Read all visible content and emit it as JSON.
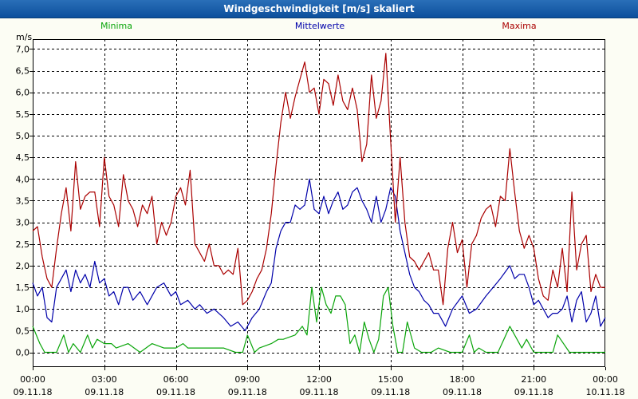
{
  "title": "Windgeschwindigkeit [m/s] skaliert",
  "chart_data": {
    "type": "line",
    "title": "Windgeschwindigkeit [m/s] skaliert",
    "ylabel": "m/s",
    "xlabel": "",
    "ylim": [
      0,
      7.0
    ],
    "xlim_hours": [
      0,
      24
    ],
    "grid": true,
    "y_ticks": [
      {
        "v": 0.0,
        "label": "0,0"
      },
      {
        "v": 0.5,
        "label": "0,5"
      },
      {
        "v": 1.0,
        "label": "1,0"
      },
      {
        "v": 1.5,
        "label": "1,5"
      },
      {
        "v": 2.0,
        "label": "2,0"
      },
      {
        "v": 2.5,
        "label": "2,5"
      },
      {
        "v": 3.0,
        "label": "3,0"
      },
      {
        "v": 3.5,
        "label": "3,5"
      },
      {
        "v": 4.0,
        "label": "4,0"
      },
      {
        "v": 4.5,
        "label": "4,5"
      },
      {
        "v": 5.0,
        "label": "5,0"
      },
      {
        "v": 5.5,
        "label": "5,5"
      },
      {
        "v": 6.0,
        "label": "6,0"
      },
      {
        "v": 6.5,
        "label": "6,5"
      },
      {
        "v": 7.0,
        "label": "7,0"
      }
    ],
    "x_ticks": [
      {
        "h": 0,
        "time": "00:00",
        "date": "09.11.18"
      },
      {
        "h": 3,
        "time": "03:00",
        "date": "09.11.18"
      },
      {
        "h": 6,
        "time": "06:00",
        "date": "09.11.18"
      },
      {
        "h": 9,
        "time": "09:00",
        "date": "09.11.18"
      },
      {
        "h": 12,
        "time": "12:00",
        "date": "09.11.18"
      },
      {
        "h": 15,
        "time": "15:00",
        "date": "09.11.18"
      },
      {
        "h": 18,
        "time": "18:00",
        "date": "09.11.18"
      },
      {
        "h": 21,
        "time": "21:00",
        "date": "09.11.18"
      },
      {
        "h": 24,
        "time": "00:00",
        "date": "10.11.18"
      }
    ],
    "series": [
      {
        "name": "Minima",
        "color": "#0aa50a",
        "x": [
          0,
          0.3,
          0.5,
          1,
          1.3,
          1.5,
          1.7,
          2,
          2.3,
          2.5,
          2.7,
          3,
          3.3,
          3.5,
          4,
          4.5,
          5,
          5.5,
          6,
          6.3,
          6.5,
          6.8,
          7,
          7.5,
          8,
          8.5,
          8.8,
          9,
          9.3,
          9.5,
          10,
          10.3,
          10.5,
          11,
          11.3,
          11.5,
          11.7,
          11.9,
          12.1,
          12.3,
          12.5,
          12.7,
          12.9,
          13.1,
          13.3,
          13.5,
          13.7,
          13.9,
          14.1,
          14.3,
          14.5,
          14.7,
          14.9,
          15.1,
          15.3,
          15.5,
          15.7,
          16,
          16.3,
          16.5,
          16.7,
          17,
          17.5,
          18,
          18.3,
          18.5,
          18.7,
          19,
          19.5,
          20,
          20.3,
          20.5,
          20.7,
          21,
          21.5,
          21.8,
          22,
          22.5,
          23,
          23.5,
          23.8,
          24
        ],
        "values": [
          0.6,
          0.2,
          0.0,
          0.0,
          0.4,
          0.0,
          0.2,
          0.0,
          0.4,
          0.1,
          0.3,
          0.2,
          0.2,
          0.1,
          0.2,
          0.0,
          0.2,
          0.1,
          0.1,
          0.2,
          0.1,
          0.1,
          0.1,
          0.1,
          0.1,
          0.0,
          0.0,
          0.4,
          0.0,
          0.1,
          0.2,
          0.3,
          0.3,
          0.4,
          0.6,
          0.4,
          1.5,
          0.7,
          1.5,
          1.1,
          0.9,
          1.3,
          1.3,
          1.1,
          0.2,
          0.4,
          0.0,
          0.7,
          0.3,
          0.0,
          0.3,
          1.3,
          1.5,
          0.6,
          0.0,
          0.0,
          0.7,
          0.1,
          0.0,
          0.0,
          0.0,
          0.1,
          0.0,
          0.0,
          0.4,
          0.0,
          0.1,
          0.0,
          0.0,
          0.6,
          0.3,
          0.1,
          0.3,
          0.0,
          0.0,
          0.0,
          0.4,
          0.0,
          0.0,
          0.0,
          0.0,
          0.0
        ]
      },
      {
        "name": "Mittelwerte",
        "color": "#0000aa",
        "x": [
          0,
          0.2,
          0.4,
          0.6,
          0.8,
          1,
          1.2,
          1.4,
          1.6,
          1.8,
          2,
          2.2,
          2.4,
          2.6,
          2.8,
          3,
          3.2,
          3.4,
          3.6,
          3.8,
          4,
          4.2,
          4.5,
          4.8,
          5,
          5.2,
          5.5,
          5.8,
          6,
          6.2,
          6.5,
          6.8,
          7,
          7.3,
          7.6,
          8,
          8.3,
          8.6,
          8.9,
          9.2,
          9.5,
          9.8,
          10,
          10.2,
          10.4,
          10.6,
          10.8,
          11,
          11.2,
          11.4,
          11.6,
          11.8,
          12,
          12.2,
          12.4,
          12.6,
          12.8,
          13,
          13.2,
          13.4,
          13.6,
          13.8,
          14,
          14.2,
          14.4,
          14.6,
          14.8,
          15,
          15.2,
          15.4,
          15.6,
          15.8,
          16,
          16.2,
          16.4,
          16.6,
          16.8,
          17,
          17.3,
          17.6,
          18,
          18.3,
          18.6,
          19,
          19.3,
          19.6,
          20,
          20.2,
          20.4,
          20.6,
          20.8,
          21,
          21.2,
          21.4,
          21.6,
          21.8,
          22,
          22.2,
          22.4,
          22.6,
          22.8,
          23,
          23.2,
          23.4,
          23.6,
          23.8,
          24
        ],
        "values": [
          1.6,
          1.3,
          1.5,
          0.8,
          0.7,
          1.5,
          1.7,
          1.9,
          1.4,
          1.9,
          1.6,
          1.8,
          1.5,
          2.1,
          1.6,
          1.7,
          1.3,
          1.4,
          1.1,
          1.5,
          1.5,
          1.2,
          1.4,
          1.1,
          1.3,
          1.5,
          1.6,
          1.3,
          1.4,
          1.1,
          1.2,
          1.0,
          1.1,
          0.9,
          1.0,
          0.8,
          0.6,
          0.7,
          0.5,
          0.8,
          1.0,
          1.4,
          1.6,
          2.4,
          2.8,
          3.0,
          3.0,
          3.4,
          3.3,
          3.4,
          4.0,
          3.3,
          3.2,
          3.6,
          3.2,
          3.5,
          3.7,
          3.3,
          3.4,
          3.7,
          3.8,
          3.5,
          3.3,
          3.0,
          3.6,
          3.0,
          3.3,
          3.8,
          3.6,
          2.8,
          2.3,
          1.8,
          1.5,
          1.4,
          1.2,
          1.1,
          0.9,
          0.9,
          0.6,
          1.0,
          1.3,
          0.9,
          1.0,
          1.3,
          1.5,
          1.7,
          2.0,
          1.7,
          1.8,
          1.8,
          1.5,
          1.1,
          1.2,
          1.0,
          0.8,
          0.9,
          0.9,
          1.0,
          1.3,
          0.7,
          1.2,
          1.4,
          0.7,
          0.9,
          1.3,
          0.6,
          0.8
        ]
      },
      {
        "name": "Maxima",
        "color": "#aa0000",
        "x": [
          0,
          0.2,
          0.4,
          0.6,
          0.8,
          1,
          1.2,
          1.4,
          1.6,
          1.8,
          2,
          2.2,
          2.4,
          2.6,
          2.8,
          3,
          3.2,
          3.4,
          3.6,
          3.8,
          4,
          4.2,
          4.4,
          4.6,
          4.8,
          5,
          5.2,
          5.4,
          5.6,
          5.8,
          6,
          6.2,
          6.4,
          6.6,
          6.8,
          7,
          7.2,
          7.4,
          7.6,
          7.8,
          8,
          8.2,
          8.4,
          8.6,
          8.8,
          9,
          9.2,
          9.4,
          9.6,
          9.8,
          10,
          10.2,
          10.4,
          10.6,
          10.8,
          11,
          11.2,
          11.4,
          11.6,
          11.8,
          12,
          12.2,
          12.4,
          12.6,
          12.8,
          13,
          13.2,
          13.4,
          13.6,
          13.8,
          14,
          14.2,
          14.4,
          14.6,
          14.8,
          15,
          15.2,
          15.4,
          15.6,
          15.8,
          16,
          16.2,
          16.4,
          16.6,
          16.8,
          17,
          17.2,
          17.4,
          17.6,
          17.8,
          18,
          18.2,
          18.4,
          18.6,
          18.8,
          19,
          19.2,
          19.4,
          19.6,
          19.8,
          20,
          20.2,
          20.4,
          20.6,
          20.8,
          21,
          21.2,
          21.4,
          21.6,
          21.8,
          22,
          22.2,
          22.4,
          22.6,
          22.8,
          23,
          23.2,
          23.4,
          23.6,
          23.8,
          24
        ],
        "values": [
          2.8,
          2.9,
          2.2,
          1.7,
          1.5,
          2.4,
          3.2,
          3.8,
          2.8,
          4.4,
          3.3,
          3.6,
          3.7,
          3.7,
          2.9,
          4.5,
          3.6,
          3.4,
          2.9,
          4.1,
          3.5,
          3.3,
          2.9,
          3.4,
          3.2,
          3.6,
          2.5,
          3.0,
          2.7,
          3.0,
          3.6,
          3.8,
          3.4,
          4.2,
          2.5,
          2.3,
          2.1,
          2.5,
          2.0,
          2.0,
          1.8,
          1.9,
          1.8,
          2.4,
          1.1,
          1.2,
          1.4,
          1.7,
          1.9,
          2.4,
          3.2,
          4.3,
          5.3,
          6.0,
          5.4,
          5.9,
          6.3,
          6.7,
          6.0,
          6.1,
          5.5,
          6.3,
          6.2,
          5.7,
          6.4,
          5.8,
          5.6,
          6.1,
          5.6,
          4.4,
          4.8,
          6.4,
          5.4,
          5.8,
          6.9,
          4.9,
          3.0,
          4.5,
          3.0,
          2.2,
          2.1,
          1.9,
          2.1,
          2.3,
          1.9,
          1.9,
          1.1,
          2.4,
          3.0,
          2.3,
          2.6,
          1.5,
          2.5,
          2.7,
          3.1,
          3.3,
          3.4,
          2.9,
          3.6,
          3.5,
          4.7,
          3.7,
          2.8,
          2.4,
          2.7,
          2.4,
          1.7,
          1.3,
          1.2,
          1.9,
          1.5,
          2.4,
          1.4,
          3.7,
          1.9,
          2.5,
          2.7,
          1.4,
          1.8,
          1.5,
          1.5
        ]
      }
    ]
  }
}
